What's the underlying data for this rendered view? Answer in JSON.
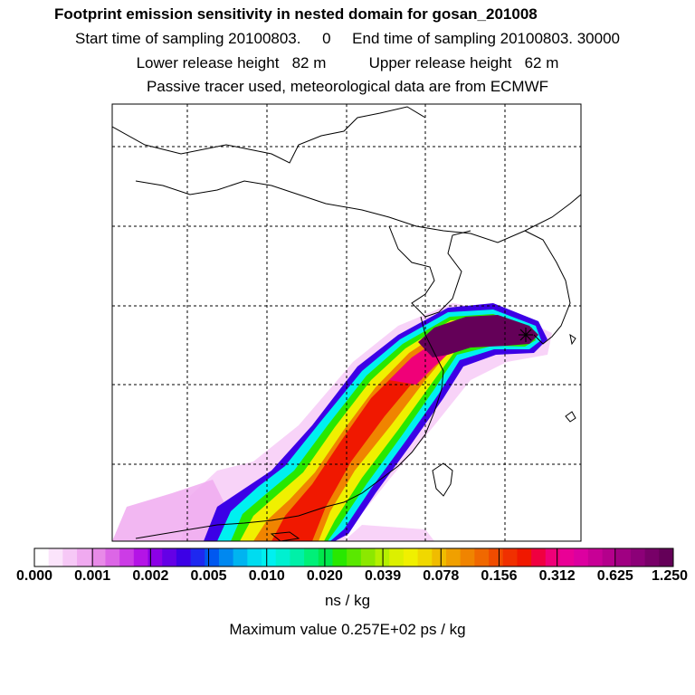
{
  "header": {
    "title": "Footprint emission sensitivity in nested domain for gosan_201008",
    "sampling_line": "Start time of sampling 20100803.     0     End time of sampling 20100803. 30000",
    "release_line": "Lower release height   82 m          Upper release height   62 m",
    "tracer_line": "Passive tracer used, meteorological data are from ECMWF"
  },
  "legend": {
    "tick_labels": [
      "0.000",
      "0.001",
      "0.002",
      "0.005",
      "0.010",
      "0.020",
      "0.039",
      "0.078",
      "0.156",
      "0.312",
      "0.625",
      "1.250"
    ],
    "units": "ns / kg",
    "colors": [
      "#ffffff",
      "#fbe4fb",
      "#f6c8f6",
      "#f0aaf0",
      "#e88ae8",
      "#dc66e6",
      "#cc3ce6",
      "#b414e6",
      "#8c00e6",
      "#6400e6",
      "#3c00e6",
      "#1e28f0",
      "#0058f0",
      "#0088f0",
      "#00b4f0",
      "#00dcf0",
      "#00f0f0",
      "#00f0d0",
      "#00f0a8",
      "#00f078",
      "#00e84c",
      "#28e800",
      "#5ae800",
      "#8ce800",
      "#b4f000",
      "#dcf000",
      "#f0f000",
      "#f0d800",
      "#f0bc00",
      "#f0a000",
      "#f08400",
      "#f06800",
      "#f04c00",
      "#f03000",
      "#f01800",
      "#f00040",
      "#f00078",
      "#ea0096",
      "#dc00a0",
      "#c80096",
      "#b4008c",
      "#a00082",
      "#8c0078",
      "#780068",
      "#640058"
    ]
  },
  "footer": {
    "max_value": "Maximum value  0.257E+02 ps / kg"
  },
  "map": {
    "source_marker": "receptor-star"
  }
}
